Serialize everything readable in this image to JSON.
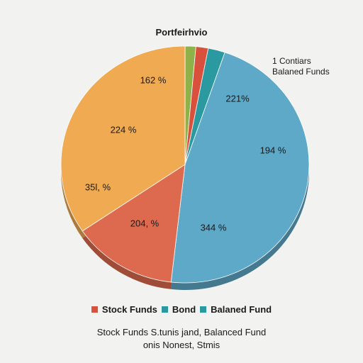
{
  "chart_data": {
    "type": "pie",
    "title": "Portfeirhvio",
    "side_note": [
      "1 Contiars",
      "Balaned Funds"
    ],
    "slices": [
      {
        "label": "162 %",
        "value": 1.4,
        "color": "#8fb14a"
      },
      {
        "label": "",
        "value": 1.6,
        "color": "#d9503c"
      },
      {
        "label": "",
        "value": 2.2,
        "color": "#2b9aa0"
      },
      {
        "label": "221%",
        "value": 0,
        "color": "#5ea8c8"
      },
      {
        "label": "194 %",
        "value": 0,
        "color": "#5ea8c8"
      },
      {
        "label": "344 %",
        "value": 46.6,
        "color": "#5ea8c8"
      },
      {
        "label": "204, %",
        "value": 13.7,
        "color": "#dd6a4e"
      },
      {
        "label": "224 %",
        "value": 0,
        "color": "#efaa52"
      },
      {
        "label": "35l, %",
        "value": 34.5,
        "color": "#efaa52"
      }
    ],
    "legend": [
      {
        "label": "Stock Funds",
        "color": "#d9503c"
      },
      {
        "label": "Bond",
        "color": "#2b9aa0"
      },
      {
        "label": "Balaned Fund",
        "color": "#2b9aa0"
      }
    ],
    "footnote": [
      "Stock Funds S.tunis jand, Balanced Fund",
      "onis Nonest, Stmis"
    ]
  }
}
